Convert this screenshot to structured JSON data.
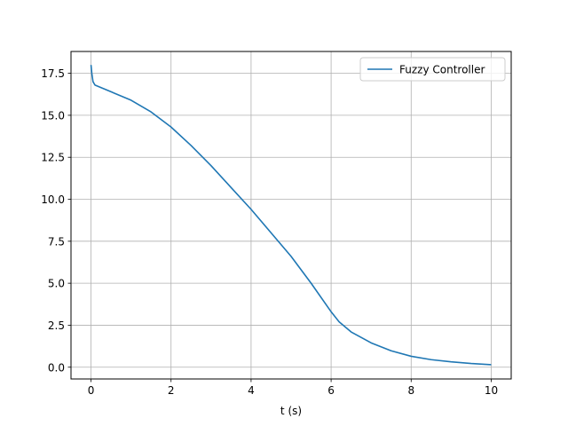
{
  "chart_data": {
    "type": "line",
    "title": "",
    "xlabel": "t (s)",
    "ylabel": "",
    "xlim": [
      -0.5,
      10.5
    ],
    "ylim": [
      -0.7,
      18.8
    ],
    "xticks": [
      0,
      2,
      4,
      6,
      8,
      10
    ],
    "xtick_labels": [
      "0",
      "2",
      "4",
      "6",
      "8",
      "10"
    ],
    "yticks": [
      0.0,
      2.5,
      5.0,
      7.5,
      10.0,
      12.5,
      15.0,
      17.5
    ],
    "ytick_labels": [
      "0.0",
      "2.5",
      "5.0",
      "7.5",
      "10.0",
      "12.5",
      "15.0",
      "17.5"
    ],
    "grid": true,
    "legend_position": "upper-right",
    "series": [
      {
        "name": "Fuzzy Controller",
        "color": "#1f77b4",
        "x": [
          0,
          0.02,
          0.05,
          0.1,
          0.3,
          0.5,
          1.0,
          1.5,
          2.0,
          2.5,
          3.0,
          3.5,
          4.0,
          4.5,
          5.0,
          5.5,
          6.0,
          6.2,
          6.5,
          7.0,
          7.5,
          8.0,
          8.5,
          9.0,
          9.5,
          10.0
        ],
        "y": [
          18.0,
          17.5,
          17.0,
          16.8,
          16.6,
          16.4,
          15.9,
          15.2,
          14.3,
          13.2,
          12.0,
          10.7,
          9.4,
          8.0,
          6.6,
          5.0,
          3.3,
          2.7,
          2.1,
          1.45,
          0.98,
          0.65,
          0.45,
          0.32,
          0.22,
          0.15
        ]
      }
    ]
  }
}
